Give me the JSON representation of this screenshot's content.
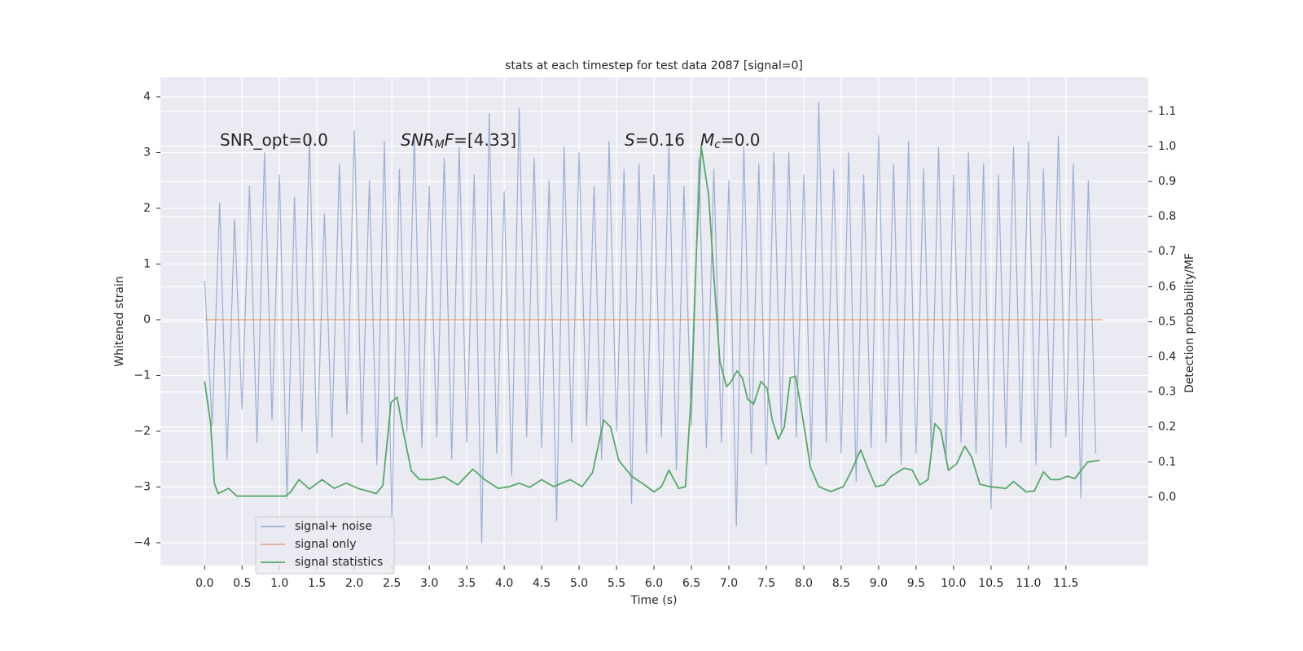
{
  "chart_data": {
    "type": "line",
    "title": "stats at each timestep for test data 2087 [signal=0]",
    "xlabel": "Time (s)",
    "ylabel": "Whitened strain",
    "y2label": "Detection probability/MF",
    "xlim": [
      -0.59,
      12.6
    ],
    "ylim": [
      -4.41,
      4.35
    ],
    "y2lim": [
      -0.195,
      1.197
    ],
    "xticks": [
      {
        "value": 0,
        "label": "0.0"
      },
      0.5,
      {
        "value": 1,
        "label": "1.0"
      },
      1.5,
      {
        "value": 2,
        "label": "2.0"
      },
      2.5,
      {
        "value": 3,
        "label": "3.0"
      },
      3.5,
      {
        "value": 4,
        "label": "4.0"
      },
      4.5,
      {
        "value": 5,
        "label": "5.0"
      },
      5.5,
      {
        "value": 6,
        "label": "6.0"
      },
      6.5,
      {
        "value": 7,
        "label": "7.0"
      },
      7.5,
      {
        "value": 8,
        "label": "8.0"
      },
      8.5,
      {
        "value": 9,
        "label": "9.0"
      },
      9.5,
      {
        "value": 10,
        "label": "10.0"
      },
      10.5,
      {
        "value": 11,
        "label": "11.0"
      },
      11.5
    ],
    "yticks": [
      {
        "value": -4,
        "label": "−4"
      },
      {
        "value": -3,
        "label": "−3"
      },
      {
        "value": -2,
        "label": "−2"
      },
      {
        "value": -1,
        "label": "−1"
      },
      0,
      1,
      2,
      3,
      4
    ],
    "y2ticks": [
      {
        "value": 0,
        "label": "0.0"
      },
      0.1,
      0.2,
      0.3,
      0.4,
      0.5,
      0.6,
      0.7,
      0.8,
      0.9,
      {
        "value": 1,
        "label": "1.0"
      },
      1.1
    ],
    "grid": true,
    "legend": "lower left",
    "annotations": [
      {
        "parts": [
          "SNR_opt=0.0"
        ]
      },
      {
        "parts": [
          "SNR",
          "M",
          "F",
          "=[4.33]"
        ]
      },
      {
        "parts": [
          "S",
          "=0.16"
        ]
      },
      {
        "parts": [
          "M",
          "c",
          "=0.0"
        ]
      }
    ],
    "series": [
      {
        "name": "signal+ noise",
        "color": "#4c72b0",
        "x": [
          0,
          0.1,
          0.2,
          0.3,
          0.4,
          0.5,
          0.6,
          0.7,
          0.8,
          0.9,
          1,
          1.1,
          1.2,
          1.3,
          1.4,
          1.5,
          1.6,
          1.7,
          1.8,
          1.9,
          2,
          2.1,
          2.2,
          2.3,
          2.4,
          2.5,
          2.6,
          2.7,
          2.8,
          2.9,
          3,
          3.1,
          3.2,
          3.3,
          3.4,
          3.5,
          3.6,
          3.7,
          3.8,
          3.9,
          4,
          4.1,
          4.2,
          4.3,
          4.4,
          4.5,
          4.6,
          4.7,
          4.8,
          4.9,
          5,
          5.1,
          5.2,
          5.3,
          5.4,
          5.5,
          5.6,
          5.7,
          5.8,
          5.9,
          6,
          6.1,
          6.2,
          6.3,
          6.4,
          6.5,
          6.6,
          6.7,
          6.8,
          6.9,
          7,
          7.1,
          7.2,
          7.3,
          7.4,
          7.5,
          7.6,
          7.7,
          7.8,
          7.9,
          8,
          8.1,
          8.2,
          8.3,
          8.4,
          8.5,
          8.6,
          8.7,
          8.8,
          8.9,
          9,
          9.1,
          9.2,
          9.3,
          9.4,
          9.5,
          9.6,
          9.7,
          9.8,
          9.9,
          10,
          10.1,
          10.2,
          10.3,
          10.4,
          10.5,
          10.6,
          10.7,
          10.8,
          10.9,
          11,
          11.1,
          11.2,
          11.3,
          11.4,
          11.5,
          11.6,
          11.7,
          11.8,
          11.9
        ],
        "values": [
          0.7,
          -1.9,
          2.1,
          -2.5,
          1.8,
          -1.6,
          2.4,
          -2.2,
          3.0,
          -1.8,
          2.6,
          -3.2,
          2.2,
          -2.0,
          3.3,
          -2.4,
          1.9,
          -2.1,
          2.8,
          -1.7,
          3.4,
          -2.2,
          2.5,
          -2.6,
          3.2,
          -3.6,
          2.7,
          -2.0,
          3.3,
          -2.3,
          2.4,
          -2.1,
          2.9,
          -2.5,
          3.1,
          -2.2,
          2.6,
          -4.0,
          3.7,
          -2.4,
          2.3,
          -2.8,
          3.8,
          -2.1,
          2.9,
          -2.3,
          2.5,
          -3.6,
          3.1,
          -2.2,
          3.0,
          -1.9,
          2.4,
          -2.5,
          3.2,
          -2.0,
          2.7,
          -3.3,
          2.8,
          -2.4,
          2.6,
          -2.1,
          3.2,
          -2.7,
          2.4,
          -1.9,
          2.9,
          -2.3,
          2.7,
          -2.2,
          2.5,
          -3.7,
          3.1,
          -2.4,
          2.8,
          -2.6,
          3.0,
          -2.0,
          3.0,
          -2.1,
          2.6,
          -2.5,
          3.9,
          -2.2,
          2.7,
          -2.4,
          3.0,
          -2.9,
          2.6,
          -2.3,
          3.3,
          -2.2,
          2.8,
          -2.6,
          3.2,
          -2.4,
          2.7,
          -2.3,
          3.1,
          -2.5,
          2.6,
          -2.2,
          3.0,
          -2.4,
          2.8,
          -3.4,
          2.6,
          -2.3,
          3.1,
          -2.2,
          3.2,
          -2.6,
          2.7,
          -2.3,
          3.3,
          -2.1,
          2.8,
          -3.2,
          2.5,
          -2.4
        ]
      },
      {
        "name": "signal only",
        "color": "#dd8452",
        "x": [
          0,
          11.99
        ],
        "values": [
          0,
          0
        ]
      },
      {
        "name": "signal statistics",
        "color": "#55a868",
        "axis": "y2",
        "x": [
          0,
          0.08,
          0.13,
          0.18,
          0.32,
          0.43,
          0.64,
          1.08,
          1.15,
          1.26,
          1.4,
          1.57,
          1.73,
          1.89,
          2.05,
          2.22,
          2.29,
          2.38,
          2.49,
          2.57,
          2.65,
          2.76,
          2.87,
          3.03,
          3.2,
          3.38,
          3.58,
          3.74,
          3.92,
          4.07,
          4.2,
          4.34,
          4.5,
          4.66,
          4.88,
          5.04,
          5.18,
          5.33,
          5.42,
          5.53,
          5.7,
          5.86,
          6.0,
          6.1,
          6.2,
          6.33,
          6.42,
          6.5,
          6.57,
          6.63,
          6.73,
          6.8,
          6.88,
          6.97,
          7.03,
          7.11,
          7.18,
          7.25,
          7.33,
          7.43,
          7.51,
          7.58,
          7.66,
          7.74,
          7.82,
          7.89,
          7.98,
          8.09,
          8.2,
          8.36,
          8.53,
          8.63,
          8.76,
          8.85,
          8.96,
          9.07,
          9.17,
          9.34,
          9.45,
          9.55,
          9.66,
          9.75,
          9.83,
          9.93,
          10.04,
          10.15,
          10.24,
          10.35,
          10.48,
          10.7,
          10.8,
          10.97,
          11.08,
          11.2,
          11.3,
          11.41,
          11.52,
          11.62,
          11.79,
          11.95
        ],
        "values": [
          0.33,
          0.21,
          0.04,
          0.01,
          0.025,
          0.003,
          0.003,
          0.003,
          0.015,
          0.05,
          0.023,
          0.05,
          0.025,
          0.04,
          0.025,
          0.015,
          0.01,
          0.033,
          0.27,
          0.285,
          0.19,
          0.075,
          0.05,
          0.05,
          0.058,
          0.035,
          0.08,
          0.05,
          0.025,
          0.03,
          0.04,
          0.028,
          0.05,
          0.03,
          0.05,
          0.03,
          0.07,
          0.22,
          0.2,
          0.105,
          0.06,
          0.037,
          0.015,
          0.03,
          0.077,
          0.025,
          0.03,
          0.3,
          0.72,
          1.0,
          0.86,
          0.63,
          0.385,
          0.315,
          0.33,
          0.36,
          0.34,
          0.28,
          0.265,
          0.33,
          0.31,
          0.22,
          0.165,
          0.2,
          0.34,
          0.345,
          0.235,
          0.085,
          0.03,
          0.016,
          0.03,
          0.072,
          0.135,
          0.085,
          0.03,
          0.035,
          0.06,
          0.083,
          0.077,
          0.035,
          0.05,
          0.21,
          0.19,
          0.077,
          0.095,
          0.145,
          0.115,
          0.037,
          0.03,
          0.025,
          0.045,
          0.015,
          0.018,
          0.072,
          0.05,
          0.05,
          0.06,
          0.053,
          0.1,
          0.105
        ]
      }
    ]
  }
}
